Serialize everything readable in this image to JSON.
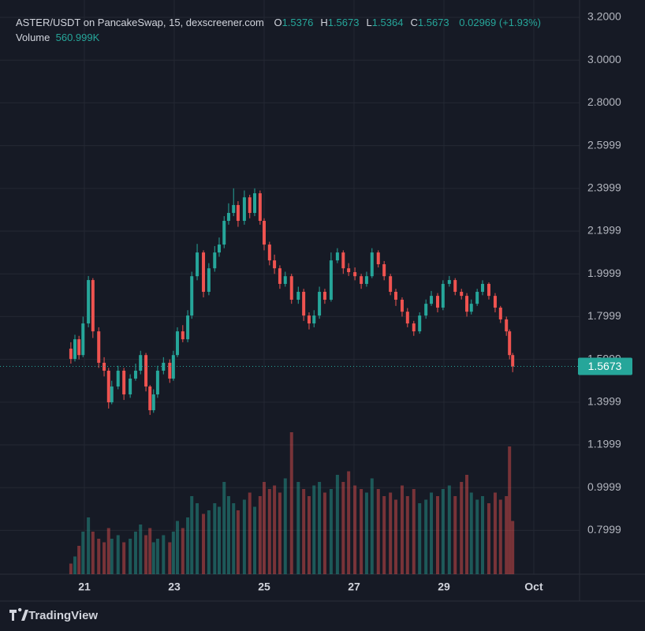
{
  "chart_data": {
    "type": "candlestick",
    "legend": {
      "title": "ASTER/USDT on PancakeSwap, 15, dexscreener.com",
      "ohlc": [
        {
          "key": "O",
          "value": 1.5376
        },
        {
          "key": "H",
          "value": 1.5673
        },
        {
          "key": "L",
          "value": 1.5364
        },
        {
          "key": "C",
          "value": 1.5673
        }
      ],
      "change": "0.02969 (+1.93%)",
      "volume_label": "Volume",
      "volume_value": "560.999K"
    },
    "x": [
      20.7,
      20.79,
      20.88,
      20.97,
      21.09,
      21.19,
      21.32,
      21.44,
      21.54,
      21.61,
      21.75,
      21.88,
      22.02,
      22.14,
      22.25,
      22.37,
      22.46,
      22.54,
      22.63,
      22.76,
      22.9,
      22.98,
      23.07,
      23.19,
      23.3,
      23.39,
      23.51,
      23.65,
      23.77,
      23.9,
      24.0,
      24.11,
      24.21,
      24.32,
      24.42,
      24.56,
      24.68,
      24.79,
      24.91,
      25.0,
      25.12,
      25.23,
      25.35,
      25.47,
      25.61,
      25.76,
      25.88,
      26.0,
      26.11,
      26.23,
      26.35,
      26.49,
      26.63,
      26.76,
      26.88,
      27.02,
      27.16,
      27.28,
      27.4,
      27.54,
      27.67,
      27.81,
      27.93,
      28.07,
      28.19,
      28.33,
      28.46,
      28.6,
      28.72,
      28.86,
      28.98,
      29.12,
      29.25,
      29.39,
      29.51,
      29.61,
      29.74,
      29.86,
      30.0,
      30.14,
      30.26,
      30.39,
      30.46,
      30.53
    ],
    "open": [
      1.65,
      1.602,
      1.694,
      1.62,
      1.768,
      1.971,
      1.731,
      1.584,
      1.547,
      1.399,
      1.473,
      1.547,
      1.436,
      1.51,
      1.547,
      1.62,
      1.473,
      1.362,
      1.436,
      1.547,
      1.584,
      1.51,
      1.62,
      1.731,
      1.694,
      1.805,
      1.989,
      2.1,
      1.916,
      2.026,
      2.1,
      2.137,
      2.248,
      2.285,
      2.322,
      2.248,
      2.358,
      2.285,
      2.377,
      2.248,
      2.137,
      2.063,
      2.026,
      1.953,
      1.989,
      1.879,
      1.916,
      1.805,
      1.768,
      1.805,
      1.916,
      1.879,
      2.063,
      2.1,
      2.026,
      2.008,
      1.989,
      1.953,
      1.989,
      2.1,
      2.045,
      1.989,
      1.916,
      1.879,
      1.823,
      1.768,
      1.731,
      1.805,
      1.86,
      1.897,
      1.842,
      1.953,
      1.971,
      1.916,
      1.897,
      1.823,
      1.86,
      1.916,
      1.953,
      1.897,
      1.842,
      1.787,
      1.731,
      1.62
    ],
    "high": [
      1.68,
      1.715,
      1.71,
      1.8,
      1.99,
      1.98,
      1.75,
      1.61,
      1.56,
      1.5,
      1.57,
      1.56,
      1.53,
      1.58,
      1.64,
      1.63,
      1.48,
      1.46,
      1.57,
      1.61,
      1.6,
      1.64,
      1.75,
      1.76,
      1.83,
      2.01,
      2.14,
      2.11,
      2.05,
      2.13,
      2.17,
      2.27,
      2.33,
      2.4,
      2.34,
      2.39,
      2.37,
      2.4,
      2.39,
      2.26,
      2.15,
      2.09,
      2.04,
      2.01,
      2.0,
      1.94,
      1.93,
      1.82,
      1.83,
      1.94,
      1.93,
      2.1,
      2.12,
      2.11,
      2.05,
      2.03,
      2.0,
      2.01,
      2.12,
      2.11,
      2.06,
      2.0,
      1.93,
      1.89,
      1.84,
      1.78,
      1.82,
      1.88,
      1.92,
      1.91,
      1.97,
      1.99,
      1.98,
      1.93,
      1.91,
      1.88,
      1.93,
      1.97,
      1.96,
      1.91,
      1.85,
      1.8,
      1.74,
      1.63
    ],
    "low": [
      1.58,
      1.59,
      1.6,
      1.61,
      1.75,
      1.7,
      1.56,
      1.52,
      1.37,
      1.39,
      1.46,
      1.41,
      1.42,
      1.5,
      1.53,
      1.45,
      1.34,
      1.35,
      1.42,
      1.53,
      1.49,
      1.5,
      1.61,
      1.68,
      1.68,
      1.79,
      1.97,
      1.89,
      1.9,
      2.01,
      2.08,
      2.12,
      2.23,
      2.27,
      2.22,
      2.23,
      2.26,
      2.27,
      2.23,
      2.11,
      2.04,
      2.0,
      1.93,
      1.94,
      1.86,
      1.86,
      1.78,
      1.74,
      1.75,
      1.79,
      1.86,
      1.87,
      2.05,
      2.0,
      1.99,
      1.97,
      1.93,
      1.94,
      1.98,
      2.03,
      1.97,
      1.9,
      1.85,
      1.8,
      1.75,
      1.71,
      1.72,
      1.79,
      1.85,
      1.82,
      1.83,
      1.94,
      1.9,
      1.88,
      1.8,
      1.81,
      1.85,
      1.9,
      1.88,
      1.82,
      1.77,
      1.71,
      1.6,
      1.54
    ],
    "close": [
      1.602,
      1.694,
      1.62,
      1.768,
      1.971,
      1.731,
      1.584,
      1.547,
      1.399,
      1.473,
      1.547,
      1.436,
      1.51,
      1.547,
      1.62,
      1.473,
      1.362,
      1.436,
      1.547,
      1.584,
      1.51,
      1.62,
      1.731,
      1.694,
      1.805,
      1.989,
      2.1,
      1.916,
      2.026,
      2.1,
      2.137,
      2.248,
      2.285,
      2.322,
      2.248,
      2.358,
      2.285,
      2.377,
      2.248,
      2.137,
      2.063,
      2.026,
      1.953,
      1.989,
      1.879,
      1.916,
      1.805,
      1.768,
      1.805,
      1.916,
      1.879,
      2.063,
      2.1,
      2.026,
      2.008,
      1.989,
      1.953,
      1.989,
      2.1,
      2.045,
      1.989,
      1.916,
      1.879,
      1.823,
      1.768,
      1.731,
      1.805,
      1.86,
      1.897,
      1.842,
      1.953,
      1.971,
      1.916,
      1.897,
      1.823,
      1.86,
      1.916,
      1.953,
      1.897,
      1.842,
      1.787,
      1.731,
      1.62,
      1.567
    ],
    "volume": [
      300000,
      500000,
      800000,
      1200000,
      1600000,
      1200000,
      1000000,
      900000,
      1300000,
      1000000,
      1100000,
      900000,
      1000000,
      1200000,
      1400000,
      1100000,
      1300000,
      900000,
      1000000,
      1100000,
      900000,
      1200000,
      1500000,
      1300000,
      1600000,
      2200000,
      2000000,
      1700000,
      1800000,
      2000000,
      1900000,
      2600000,
      2200000,
      2000000,
      1800000,
      2100000,
      2300000,
      1900000,
      2200000,
      2600000,
      2400000,
      2500000,
      2300000,
      2700000,
      4000000,
      2600000,
      2400000,
      2200000,
      2500000,
      2600000,
      2300000,
      2400000,
      2800000,
      2600000,
      2900000,
      2500000,
      2400000,
      2300000,
      2700000,
      2400000,
      2200000,
      2300000,
      2100000,
      2500000,
      2200000,
      2400000,
      2000000,
      2100000,
      2300000,
      2200000,
      2400000,
      2500000,
      2200000,
      2600000,
      2800000,
      2300000,
      2100000,
      2200000,
      2000000,
      2300000,
      2100000,
      2200000,
      3600000,
      1500000
    ],
    "up_color": "#26a69a",
    "down_color": "#ef5350",
    "last_price": 1.5673,
    "xlim": [
      19.123,
      32.018
    ],
    "xticks": [
      21,
      23,
      25,
      27,
      29,
      {
        "value": 31,
        "label": "Oct"
      }
    ],
    "ylim": [
      0.5948,
      3.2812
    ],
    "yticks": [
      {
        "value": 3.2,
        "label": "3.2000"
      },
      {
        "value": 3.0,
        "label": "3.0000"
      },
      {
        "value": 2.8,
        "label": "2.8000"
      },
      2.5999,
      2.3999,
      2.1999,
      1.9999,
      1.7999,
      1.5999,
      1.3999,
      1.1999,
      0.9999,
      0.7999
    ],
    "grid": true,
    "brand": "TradingView"
  }
}
